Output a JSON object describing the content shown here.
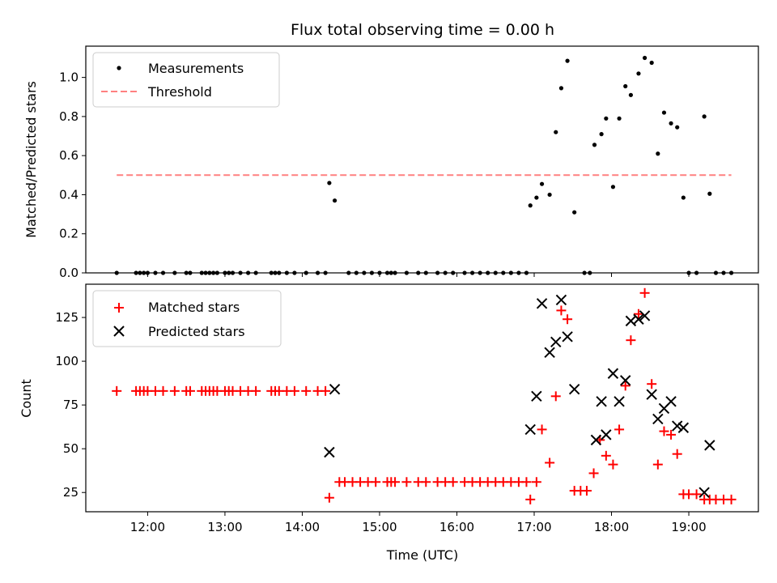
{
  "chart_data": [
    {
      "type": "scatter",
      "title": "Flux total observing time = 0.00 h",
      "xlabel": "",
      "ylabel": "Matched/Predicted stars",
      "xlim": [
        11.2,
        19.9
      ],
      "ylim": [
        0,
        1.16
      ],
      "yticks": [
        0.0,
        0.2,
        0.4,
        0.6,
        0.8,
        1.0
      ],
      "ytick_labels": [
        "0.0",
        "0.2",
        "0.4",
        "0.6",
        "0.8",
        "1.0"
      ],
      "legend": {
        "placement": "upper-left",
        "entries": [
          "Measurements",
          "Threshold"
        ]
      },
      "threshold": {
        "name": "Threshold",
        "y": 0.5,
        "x": [
          11.6,
          19.55
        ],
        "color": "#ff8080"
      },
      "series": [
        {
          "name": "Measurements",
          "color": "#000000",
          "marker": "dot",
          "x": [
            11.6,
            11.85,
            11.9,
            11.95,
            12.0,
            12.1,
            12.2,
            12.35,
            12.5,
            12.55,
            12.7,
            12.75,
            12.8,
            12.85,
            12.9,
            13.0,
            13.05,
            13.1,
            13.2,
            13.3,
            13.4,
            13.6,
            13.65,
            13.7,
            13.8,
            13.9,
            14.05,
            14.2,
            14.3,
            14.35,
            14.42,
            14.6,
            14.7,
            14.8,
            14.9,
            15.0,
            15.1,
            15.15,
            15.2,
            15.35,
            15.5,
            15.6,
            15.75,
            15.85,
            15.95,
            16.1,
            16.2,
            16.3,
            16.4,
            16.5,
            16.6,
            16.7,
            16.8,
            16.9,
            16.95,
            17.03,
            17.1,
            17.2,
            17.28,
            17.35,
            17.43,
            17.52,
            17.65,
            17.72,
            17.78,
            17.87,
            17.93,
            18.02,
            18.1,
            18.18,
            18.25,
            18.35,
            18.43,
            18.52,
            18.6,
            18.68,
            18.77,
            18.85,
            18.93,
            19.0,
            19.1,
            19.2,
            19.27,
            19.35,
            19.45,
            19.55
          ],
          "y": [
            0,
            0,
            0,
            0,
            0,
            0,
            0,
            0,
            0,
            0,
            0,
            0,
            0,
            0,
            0,
            0,
            0,
            0,
            0,
            0,
            0,
            0,
            0,
            0,
            0,
            0,
            0,
            0,
            0,
            0.46,
            0.37,
            0,
            0,
            0,
            0,
            0,
            0,
            0,
            0,
            0,
            0,
            0,
            0,
            0,
            0,
            0,
            0,
            0,
            0,
            0,
            0,
            0,
            0,
            0,
            0.345,
            0.385,
            0.455,
            0.4,
            0.72,
            0.945,
            1.085,
            0.31,
            0,
            0,
            0.655,
            0.71,
            0.79,
            0.44,
            0.79,
            0.955,
            0.91,
            1.02,
            1.1,
            1.075,
            0.61,
            0.82,
            0.765,
            0.745,
            0.385,
            0,
            0,
            0.8,
            0.405,
            0,
            0,
            0
          ]
        }
      ]
    },
    {
      "type": "scatter",
      "title": "",
      "xlabel": "Time (UTC)",
      "ylabel": "Count",
      "xlim": [
        11.2,
        19.9
      ],
      "ylim": [
        14,
        144
      ],
      "xticks": [
        12,
        13,
        14,
        15,
        16,
        17,
        18,
        19
      ],
      "xtick_labels": [
        "12:00",
        "13:00",
        "14:00",
        "15:00",
        "16:00",
        "17:00",
        "18:00",
        "19:00"
      ],
      "yticks": [
        25,
        50,
        75,
        100,
        125
      ],
      "ytick_labels": [
        "25",
        "50",
        "75",
        "100",
        "125"
      ],
      "legend": {
        "placement": "upper-left",
        "entries": [
          "Matched stars",
          "Predicted stars"
        ]
      },
      "series": [
        {
          "name": "Matched stars",
          "color": "#ff0000",
          "marker": "plus",
          "x": [
            11.6,
            11.85,
            11.9,
            11.95,
            12.0,
            12.1,
            12.2,
            12.35,
            12.5,
            12.55,
            12.7,
            12.75,
            12.8,
            12.85,
            12.9,
            13.0,
            13.05,
            13.1,
            13.2,
            13.3,
            13.4,
            13.6,
            13.65,
            13.7,
            13.8,
            13.9,
            14.05,
            14.2,
            14.3,
            14.35,
            14.48,
            14.55,
            14.65,
            14.75,
            14.85,
            14.95,
            15.1,
            15.15,
            15.2,
            15.35,
            15.5,
            15.6,
            15.75,
            15.85,
            15.95,
            16.1,
            16.2,
            16.3,
            16.4,
            16.5,
            16.6,
            16.7,
            16.8,
            16.9,
            16.95,
            17.03,
            17.1,
            17.2,
            17.28,
            17.35,
            17.43,
            17.52,
            17.6,
            17.68,
            17.77,
            17.85,
            17.93,
            18.02,
            18.1,
            18.18,
            18.25,
            18.35,
            18.43,
            18.52,
            18.6,
            18.68,
            18.77,
            18.85,
            18.93,
            19.0,
            19.1,
            19.2,
            19.27,
            19.35,
            19.45,
            19.55
          ],
          "y": [
            83,
            83,
            83,
            83,
            83,
            83,
            83,
            83,
            83,
            83,
            83,
            83,
            83,
            83,
            83,
            83,
            83,
            83,
            83,
            83,
            83,
            83,
            83,
            83,
            83,
            83,
            83,
            83,
            83,
            22,
            31,
            31,
            31,
            31,
            31,
            31,
            31,
            31,
            31,
            31,
            31,
            31,
            31,
            31,
            31,
            31,
            31,
            31,
            31,
            31,
            31,
            31,
            31,
            31,
            21,
            31,
            61,
            42,
            80,
            129,
            124,
            26,
            26,
            26,
            36,
            55,
            46,
            41,
            61,
            86,
            112,
            127,
            139,
            87,
            41,
            60,
            58,
            47,
            24,
            24,
            24,
            21,
            21,
            21,
            21,
            21
          ]
        },
        {
          "name": "Predicted stars",
          "color": "#000000",
          "marker": "x",
          "x": [
            14.35,
            14.42,
            16.95,
            17.03,
            17.1,
            17.2,
            17.28,
            17.35,
            17.43,
            17.52,
            17.8,
            17.87,
            17.93,
            18.02,
            18.1,
            18.18,
            18.25,
            18.35,
            18.43,
            18.52,
            18.6,
            18.68,
            18.77,
            18.85,
            18.93,
            19.2,
            19.27
          ],
          "y": [
            48,
            84,
            61,
            80,
            133,
            105,
            111,
            135,
            114,
            84,
            55,
            77,
            58,
            93,
            77,
            89,
            123,
            124,
            126,
            81,
            67,
            73,
            77,
            63,
            62,
            25,
            52
          ]
        }
      ]
    }
  ]
}
